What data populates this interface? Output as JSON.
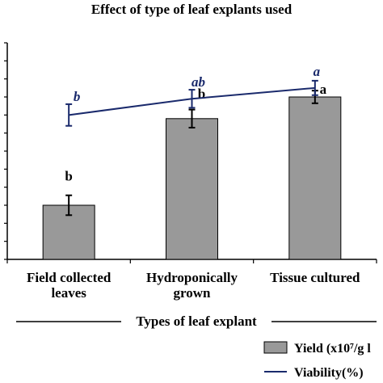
{
  "chart_data": {
    "type": "bar",
    "title": "Effect of type of leaf explants used",
    "xlabel": "Types of leaf explant",
    "ylabel": "",
    "ylim": [
      0,
      12
    ],
    "categories": [
      "Field collected leaves",
      "Hydroponically grown",
      "Tissue cultured"
    ],
    "category_lines": [
      [
        "Field collected",
        "leaves"
      ],
      [
        "Hydroponically",
        "grown"
      ],
      [
        "Tissue cultured"
      ]
    ],
    "grid": false,
    "legend_position": "bottom-right",
    "series": [
      {
        "name": "Yield (x10⁷/g l",
        "type": "bar",
        "color": "#999999",
        "values": [
          3.0,
          7.8,
          9.0
        ],
        "errors": [
          0.55,
          0.5,
          0.35
        ],
        "labels": [
          "b",
          "b",
          "a"
        ]
      },
      {
        "name": "Viability(%)",
        "type": "line",
        "color": "#1a2a6c",
        "values": [
          8.0,
          8.9,
          9.5
        ],
        "errors": [
          0.6,
          0.5,
          0.4
        ],
        "labels": [
          "b",
          "ab",
          "a"
        ]
      }
    ]
  }
}
